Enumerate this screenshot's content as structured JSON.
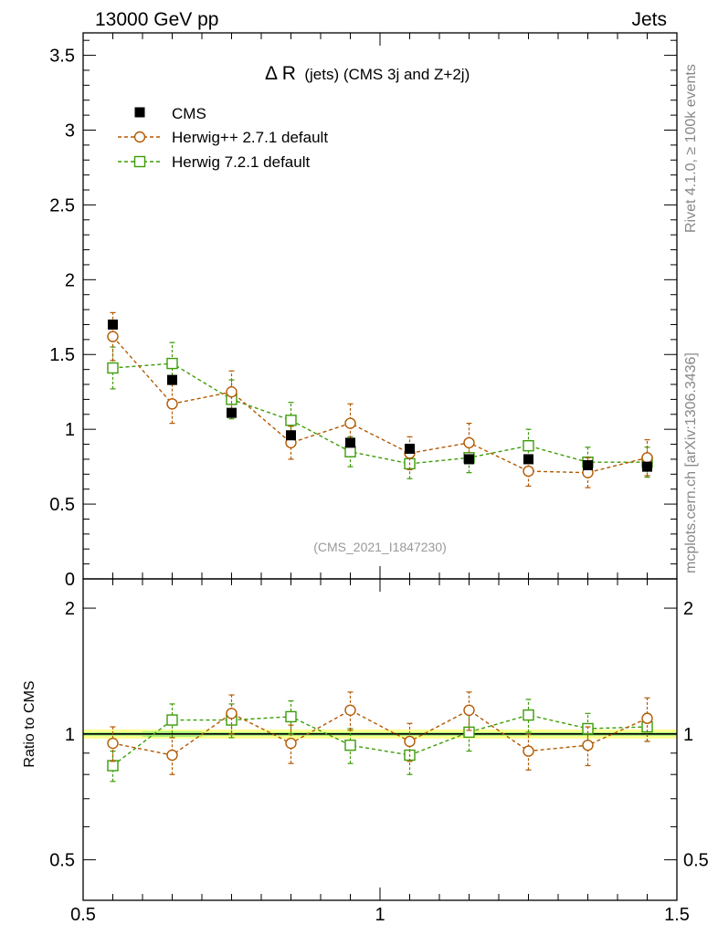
{
  "header": {
    "left": "13000 GeV pp",
    "right": "Jets"
  },
  "side_labels": {
    "rivet": "Rivet 4.1.0, ≥ 100k events",
    "mcplots": "mcplots.cern.ch [arXiv:1306.3436]"
  },
  "colors": {
    "cms": "#000000",
    "herwig_pp": "#b35900",
    "herwig7": "#3c9c08",
    "band_outer": "#ffff90",
    "band_inner": "#a6f07a"
  },
  "chart_data": [
    {
      "type": "scatter",
      "panel": "main",
      "title": "Δ R (jets) (CMS 3j and Z+2j)",
      "title_symbol": "Δ R",
      "title_rest": "(jets) (CMS 3j and Z+2j)",
      "watermark": "(CMS_2021_I1847230)",
      "xlabel": "",
      "ylabel": "",
      "xlim": [
        0.5,
        1.5
      ],
      "ylim": [
        0,
        3.65
      ],
      "y_ticks": [
        0,
        0.5,
        1,
        1.5,
        2,
        2.5,
        3,
        3.5
      ],
      "y_tick_labels": [
        "0",
        "0.5",
        "1",
        "1.5",
        "2",
        "2.5",
        "3",
        "3.5"
      ],
      "legend_position": "top-left",
      "x": [
        0.55,
        0.65,
        0.75,
        0.85,
        0.95,
        1.05,
        1.15,
        1.25,
        1.35,
        1.45
      ],
      "series": [
        {
          "name": "CMS",
          "marker": "filled-square",
          "values": [
            1.7,
            1.33,
            1.11,
            0.96,
            0.91,
            0.87,
            0.8,
            0.8,
            0.76,
            0.75
          ],
          "errors": [
            0.02,
            0.02,
            0.02,
            0.02,
            0.02,
            0.02,
            0.02,
            0.02,
            0.02,
            0.02
          ]
        },
        {
          "name": "Herwig++ 2.7.1 default",
          "marker": "open-circle",
          "values": [
            1.62,
            1.17,
            1.25,
            0.91,
            1.04,
            0.84,
            0.91,
            0.72,
            0.71,
            0.81
          ],
          "errors": [
            0.16,
            0.13,
            0.14,
            0.11,
            0.13,
            0.11,
            0.13,
            0.1,
            0.1,
            0.12
          ]
        },
        {
          "name": "Herwig 7.2.1 default",
          "marker": "open-square",
          "values": [
            1.41,
            1.44,
            1.2,
            1.06,
            0.85,
            0.77,
            0.81,
            0.89,
            0.78,
            0.78
          ],
          "errors": [
            0.14,
            0.14,
            0.13,
            0.12,
            0.1,
            0.1,
            0.1,
            0.11,
            0.1,
            0.1
          ]
        }
      ]
    },
    {
      "type": "scatter",
      "panel": "ratio",
      "ylabel": "Ratio to CMS",
      "yscale": "log",
      "xlim": [
        0.5,
        1.5
      ],
      "ylim": [
        0.4,
        2.35
      ],
      "y_ticks": [
        0.5,
        1,
        2
      ],
      "y_tick_labels": [
        "0.5",
        "1",
        "2"
      ],
      "x_ticks": [
        0.5,
        1,
        1.5
      ],
      "x_tick_labels": [
        "0.5",
        "1",
        "1.5"
      ],
      "reference_line": 1,
      "x": [
        0.55,
        0.65,
        0.75,
        0.85,
        0.95,
        1.05,
        1.15,
        1.25,
        1.35,
        1.45
      ],
      "band": {
        "name": "CMS uncertainty",
        "lower": [
          0.975,
          0.975,
          0.975,
          0.975,
          0.975,
          0.975,
          0.975,
          0.975,
          0.975,
          0.975
        ],
        "upper": [
          1.025,
          1.025,
          1.025,
          1.025,
          1.025,
          1.025,
          1.025,
          1.025,
          1.025,
          1.025
        ],
        "inner_lower": [
          0.99,
          0.985,
          0.99,
          0.99,
          0.99,
          0.99,
          0.99,
          0.99,
          0.99,
          0.99
        ],
        "inner_upper": [
          1.01,
          1.015,
          1.01,
          1.01,
          1.01,
          1.01,
          1.01,
          1.01,
          1.01,
          1.01
        ]
      },
      "series": [
        {
          "name": "Herwig++ 2.7.1 default",
          "marker": "open-circle",
          "values": [
            0.95,
            0.89,
            1.12,
            0.95,
            1.14,
            0.96,
            1.14,
            0.91,
            0.94,
            1.09
          ],
          "errors": [
            0.09,
            0.09,
            0.12,
            0.1,
            0.12,
            0.1,
            0.12,
            0.09,
            0.1,
            0.13
          ]
        },
        {
          "name": "Herwig 7.2.1 default",
          "marker": "open-square",
          "values": [
            0.84,
            1.08,
            1.08,
            1.1,
            0.94,
            0.89,
            1.01,
            1.11,
            1.03,
            1.04
          ],
          "errors": [
            0.07,
            0.1,
            0.1,
            0.1,
            0.09,
            0.09,
            0.1,
            0.1,
            0.09,
            0.08
          ]
        }
      ]
    }
  ]
}
